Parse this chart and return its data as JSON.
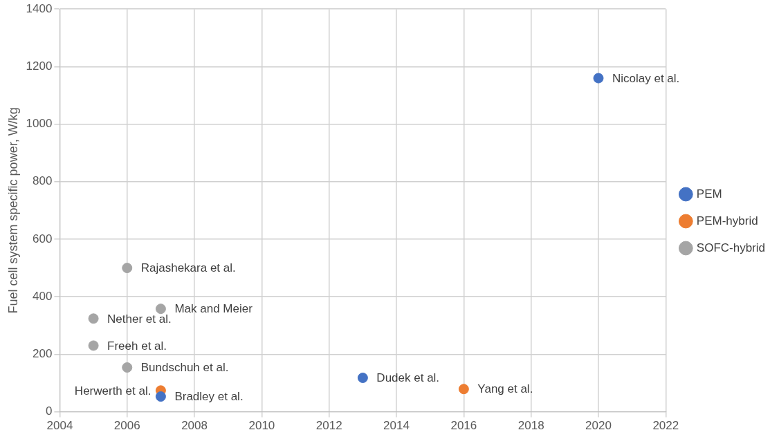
{
  "chart_data": {
    "type": "scatter",
    "ylabel": "Fuel cell system specific power, W/kg",
    "xlim": [
      2004,
      2022
    ],
    "xticks": [
      2004,
      2006,
      2008,
      2010,
      2012,
      2014,
      2016,
      2018,
      2020,
      2022
    ],
    "ylim": [
      0,
      1400
    ],
    "yticks": [
      0,
      200,
      400,
      600,
      800,
      1000,
      1200,
      1400
    ],
    "grid": true,
    "legend": "right",
    "marker": "circle",
    "series": [
      {
        "name": "PEM",
        "color": "#4472c4",
        "x": [
          2007,
          2013,
          2020
        ],
        "values": [
          53,
          118,
          1160
        ]
      },
      {
        "name": "PEM-hybrid",
        "color": "#ed7d31",
        "x": [
          2007,
          2016
        ],
        "values": [
          74,
          79
        ]
      },
      {
        "name": "SOFC-hybrid",
        "color": "#a5a5a5",
        "x": [
          2005,
          2005,
          2006,
          2006,
          2007
        ],
        "values": [
          324,
          230,
          500,
          154,
          358
        ]
      }
    ],
    "annotations": [
      {
        "text": "Nicolay et al.",
        "x": 2020,
        "y": 1160
      },
      {
        "text": "Dudek et al.",
        "x": 2013,
        "y": 118
      },
      {
        "text": "Bradley et al.",
        "x": 2007,
        "y": 53
      },
      {
        "text": "Herwerth et al.",
        "x": 2007,
        "y": 74
      },
      {
        "text": "Yang et al.",
        "x": 2016,
        "y": 79
      },
      {
        "text": "Rajashekara et al.",
        "x": 2006,
        "y": 500
      },
      {
        "text": "Mak and Meier",
        "x": 2007,
        "y": 358
      },
      {
        "text": "Nether et al.",
        "x": 2005,
        "y": 324
      },
      {
        "text": "Freeh et al.",
        "x": 2005,
        "y": 230
      },
      {
        "text": "Bundschuh et al.",
        "x": 2006,
        "y": 154
      }
    ]
  }
}
